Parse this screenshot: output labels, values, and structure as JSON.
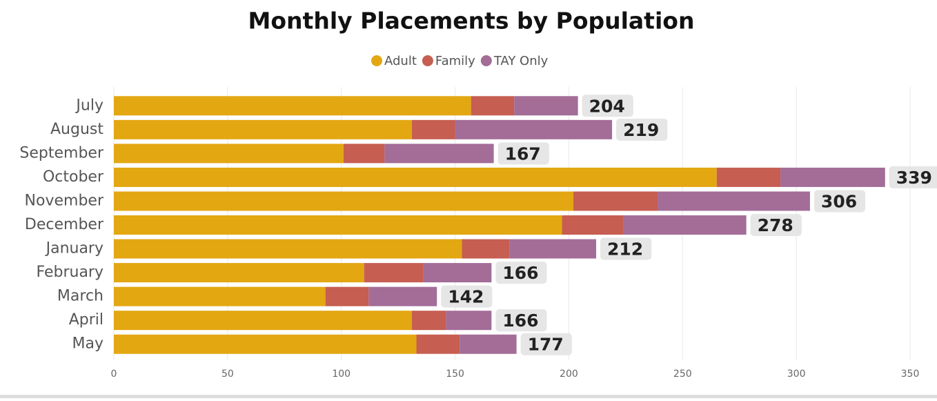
{
  "chart_data": {
    "type": "stacked-bar-horizontal",
    "title": "Monthly Placements by Population",
    "categories": [
      "July",
      "August",
      "September",
      "October",
      "November",
      "December",
      "January",
      "February",
      "March",
      "April",
      "May"
    ],
    "series": [
      {
        "name": "Adult",
        "color": "#E3A712",
        "values": [
          157,
          131,
          101,
          265,
          202,
          197,
          153,
          110,
          93,
          131,
          133
        ]
      },
      {
        "name": "Family",
        "color": "#C65E52",
        "values": [
          19,
          19,
          18,
          28,
          37,
          27,
          21,
          26,
          19,
          15,
          19
        ]
      },
      {
        "name": "TAY Only",
        "color": "#A36D98",
        "values": [
          28,
          69,
          48,
          46,
          67,
          54,
          38,
          30,
          30,
          20,
          25
        ]
      }
    ],
    "totals": [
      204,
      219,
      167,
      339,
      306,
      278,
      212,
      166,
      142,
      166,
      177
    ],
    "xlim": [
      0,
      350
    ],
    "xticks": [
      0,
      50,
      100,
      150,
      200,
      250,
      300,
      350
    ],
    "grid": true
  }
}
